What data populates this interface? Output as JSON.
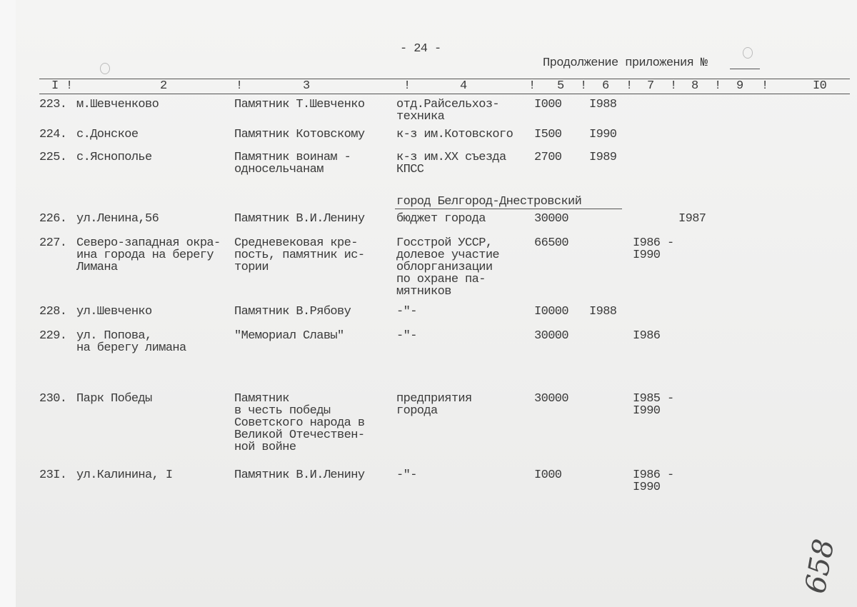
{
  "page_number": "- 24 -",
  "continuation": "Продолжение приложения №",
  "column_headers": [
    "I",
    "2",
    "3",
    "4",
    "5",
    "6",
    "7",
    "8",
    "9",
    "I0"
  ],
  "header_separators": "!",
  "section_heading": "город Белгород-Днестровский",
  "rows": [
    {
      "num": "223.",
      "place": "м.Шевченково",
      "object": "Памятник Т.Шевченко",
      "source": "отд.Райсельхоз-\nтехника",
      "c5": "I000",
      "c6": "I988",
      "c7": "",
      "c8": ""
    },
    {
      "num": "224.",
      "place": "с.Донское",
      "object": "Памятник Котовскому",
      "source": "к-з им.Котовского",
      "c5": "I500",
      "c6": "I990",
      "c7": "",
      "c8": ""
    },
    {
      "num": "225.",
      "place": "с.Яснополье",
      "object": "Памятник воинам -\nодносельчанам",
      "source": "к-з им.XX съезда\nКПСС",
      "c5": "2700",
      "c6": "I989",
      "c7": "",
      "c8": ""
    },
    {
      "num": "226.",
      "place": "ул.Ленина,56",
      "object": "Памятник В.И.Ленину",
      "source": "бюджет города",
      "c5": "30000",
      "c6": "",
      "c7": "",
      "c8": "I987"
    },
    {
      "num": "227.",
      "place": "Северо-западная окра-\nина города на берегу\nЛимана",
      "object": "Средневековая кре-\nпость, памятник ис-\nтории",
      "source": "Госстрой УССР,\nдолевое участие\nоблорганизации\nпо охране па-\nмятников",
      "c5": "66500",
      "c6": "",
      "c7": "I986 -\nI990",
      "c8": ""
    },
    {
      "num": "228.",
      "place": "ул.Шевченко",
      "object": "Памятник В.Рябову",
      "source": "-\"-",
      "c5": "I0000",
      "c6": "I988",
      "c7": "",
      "c8": ""
    },
    {
      "num": "229.",
      "place": "ул. Попова,\nна берегу лимана",
      "object": "\"Мемориал Славы\"",
      "source": "-\"-",
      "c5": "30000",
      "c6": "",
      "c7": "I986",
      "c8": ""
    },
    {
      "num": "230.",
      "place": "Парк Победы",
      "object": "Памятник\nв честь победы\nСоветского народа в\nВеликой Отечествен-\nной войне",
      "source": "предприятия\nгорода",
      "c5": "30000",
      "c6": "",
      "c7": "I985 -\nI990",
      "c8": ""
    },
    {
      "num": "23I.",
      "place": "ул.Калинина, I",
      "object": "Памятник В.И.Ленину",
      "source": "-\"-",
      "c5": "I000",
      "c6": "",
      "c7": "I986 -\nI990",
      "c8": ""
    }
  ],
  "handwritten_sheet_number": "658"
}
